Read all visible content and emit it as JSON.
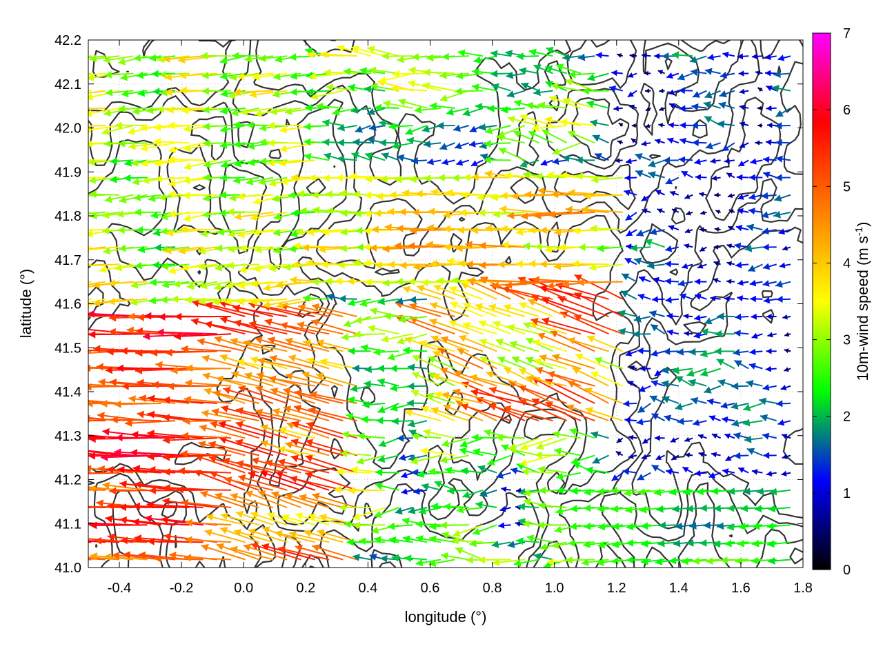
{
  "chart_data": {
    "type": "vector-field",
    "title": "",
    "xlabel": "longitude (°)",
    "ylabel": "latitude (°)",
    "xlim": [
      -0.5,
      1.8
    ],
    "ylim": [
      41.0,
      42.2
    ],
    "xticks": [
      "-0.4",
      "-0.2",
      "0.0",
      "0.2",
      "0.4",
      "0.6",
      "0.8",
      "1.0",
      "1.2",
      "1.4",
      "1.6",
      "1.8"
    ],
    "yticks": [
      "41.0",
      "41.1",
      "41.2",
      "41.3",
      "41.4",
      "41.5",
      "41.6",
      "41.7",
      "41.8",
      "41.9",
      "42.0",
      "42.1",
      "42.2"
    ],
    "grid": true,
    "colorbar": {
      "label_main": "10m-wind speed (m s",
      "label_sup": "-1",
      "label_close": ")",
      "range": [
        0,
        7
      ],
      "ticks": [
        "0",
        "1",
        "2",
        "3",
        "4",
        "5",
        "6",
        "7"
      ],
      "colors": [
        "#000000",
        "#0000ff",
        "#00ff00",
        "#ffff00",
        "#ff8000",
        "#ff0000",
        "#ff00ff"
      ]
    },
    "contour_color": "#333333",
    "wind_field": {
      "description_regions": [
        {
          "lon": [
            -0.5,
            0.4
          ],
          "lat": [
            41.0,
            41.6
          ],
          "speed_range": [
            4,
            7
          ],
          "direction": "westward"
        },
        {
          "lon": [
            -0.5,
            0.2
          ],
          "lat": [
            41.6,
            42.2
          ],
          "speed_range": [
            2,
            4
          ],
          "direction": "westward"
        },
        {
          "lon": [
            0.4,
            1.2
          ],
          "lat": [
            41.6,
            41.9
          ],
          "speed_range": [
            2.5,
            5
          ],
          "direction": "westward"
        },
        {
          "lon": [
            0.6,
            1.2
          ],
          "lat": [
            41.3,
            41.6
          ],
          "speed_range": [
            3,
            6
          ],
          "direction": "northwestward"
        },
        {
          "lon": [
            1.2,
            1.8
          ],
          "lat": [
            41.2,
            42.2
          ],
          "speed_range": [
            0,
            2
          ],
          "direction": "variable"
        },
        {
          "lon": [
            1.2,
            1.8
          ],
          "lat": [
            41.0,
            41.2
          ],
          "speed_range": [
            1.5,
            3
          ],
          "direction": "westward"
        }
      ]
    }
  }
}
